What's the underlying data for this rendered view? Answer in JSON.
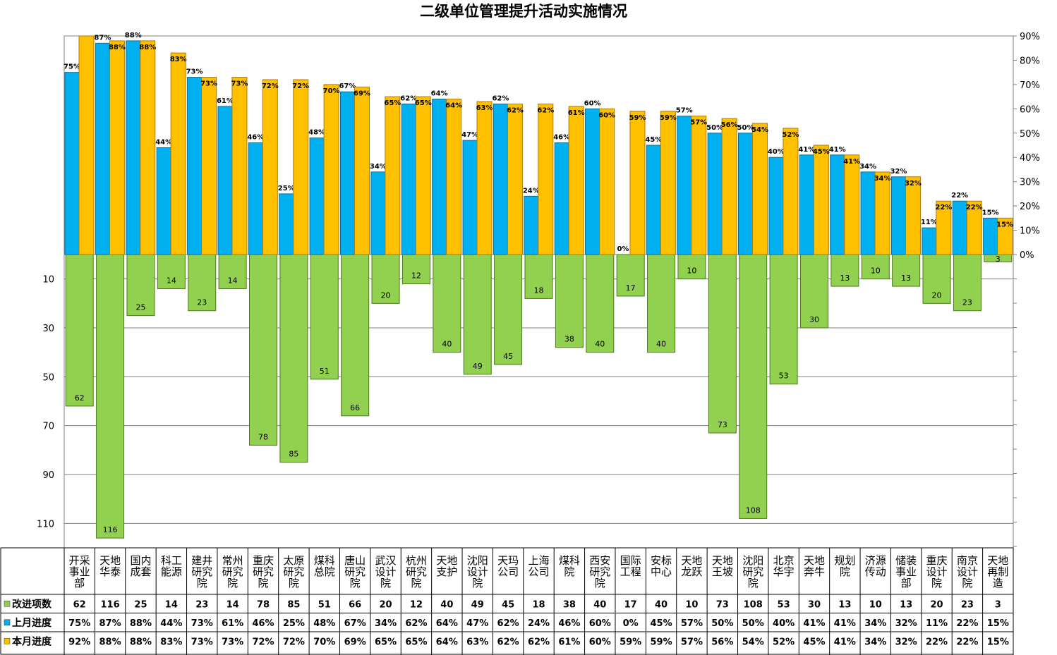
{
  "chart_data": {
    "type": "bar",
    "title": "二级单位管理提升活动实施情况",
    "categories": [
      [
        "开采",
        "事业",
        "部"
      ],
      [
        "天地",
        "华泰"
      ],
      [
        "国内",
        "成套"
      ],
      [
        "科工",
        "能源"
      ],
      [
        "建井",
        "研究",
        "院"
      ],
      [
        "常州",
        "研究",
        "院"
      ],
      [
        "重庆",
        "研究",
        "院"
      ],
      [
        "太原",
        "研究",
        "院"
      ],
      [
        "煤科",
        "总院"
      ],
      [
        "唐山",
        "研究",
        "院"
      ],
      [
        "武汉",
        "设计",
        "院"
      ],
      [
        "杭州",
        "研究",
        "院"
      ],
      [
        "天地",
        "支护"
      ],
      [
        "沈阳",
        "设计",
        "院"
      ],
      [
        "天玛",
        "公司"
      ],
      [
        "上海",
        "公司"
      ],
      [
        "煤科",
        "院"
      ],
      [
        "西安",
        "研究",
        "院"
      ],
      [
        "国际",
        "工程"
      ],
      [
        "安标",
        "中心"
      ],
      [
        "天地",
        "龙跃"
      ],
      [
        "天地",
        "王坡"
      ],
      [
        "沈阳",
        "研究",
        "院"
      ],
      [
        "北京",
        "华宇"
      ],
      [
        "天地",
        "奔牛"
      ],
      [
        "规划",
        "院"
      ],
      [
        "济源",
        "传动"
      ],
      [
        "储装",
        "事业",
        "部"
      ],
      [
        "重庆",
        "设计",
        "院"
      ],
      [
        "南京",
        "设计",
        "院"
      ],
      [
        "天地",
        "再制",
        "造"
      ]
    ],
    "series": [
      {
        "name": "改进项数",
        "color": "#92d050",
        "values": [
          62,
          116,
          25,
          14,
          23,
          14,
          78,
          85,
          51,
          66,
          20,
          12,
          40,
          49,
          45,
          18,
          38,
          40,
          17,
          40,
          10,
          73,
          108,
          53,
          30,
          13,
          10,
          13,
          20,
          23,
          3
        ]
      },
      {
        "name": "上月进度",
        "color": "#00b0f0",
        "values": [
          75,
          87,
          88,
          44,
          73,
          61,
          46,
          25,
          48,
          67,
          34,
          62,
          64,
          47,
          62,
          24,
          46,
          60,
          0,
          45,
          57,
          50,
          50,
          40,
          41,
          41,
          34,
          32,
          11,
          22,
          15
        ]
      },
      {
        "name": "本月进度",
        "color": "#ffc000",
        "values": [
          92,
          88,
          88,
          83,
          73,
          73,
          72,
          72,
          70,
          69,
          65,
          65,
          64,
          63,
          62,
          62,
          61,
          60,
          59,
          59,
          57,
          56,
          54,
          52,
          45,
          41,
          34,
          32,
          22,
          22,
          15
        ]
      }
    ],
    "y_left_ticks": [
      "10",
      "30",
      "50",
      "70",
      "90",
      "110"
    ],
    "y_right_ticks": [
      "0%",
      "10%",
      "20%",
      "30%",
      "40%",
      "50%",
      "60%",
      "70%",
      "80%",
      "90%"
    ],
    "percent_range": [
      0,
      90
    ],
    "count_range": [
      0,
      120
    ],
    "grid": true,
    "legend": "data-table"
  }
}
